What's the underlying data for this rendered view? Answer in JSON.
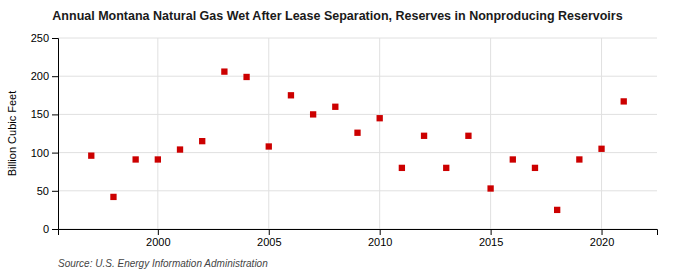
{
  "chart_data": {
    "type": "scatter",
    "title": "Annual Montana Natural Gas Wet After Lease Separation, Reserves in Nonproducing Reservoirs",
    "ylabel": "Billion Cubic Feet",
    "source": "Source: U.S. Energy Information Administration",
    "x": [
      1997,
      1998,
      1999,
      2000,
      2001,
      2002,
      2003,
      2004,
      2005,
      2006,
      2007,
      2008,
      2009,
      2010,
      2011,
      2012,
      2013,
      2014,
      2015,
      2016,
      2017,
      2018,
      2019,
      2020,
      2021
    ],
    "values": [
      96,
      42,
      91,
      91,
      104,
      115,
      206,
      199,
      108,
      175,
      150,
      160,
      126,
      145,
      80,
      122,
      80,
      122,
      53,
      91,
      80,
      25,
      91,
      105,
      167
    ],
    "color": "#cc0000",
    "marker": "square",
    "xlim": [
      1995.5,
      2022.5
    ],
    "ylim": [
      0,
      250
    ],
    "xticks": [
      2000,
      2005,
      2010,
      2015,
      2020
    ],
    "yticks": [
      0,
      50,
      100,
      150,
      200,
      250
    ],
    "grid": true
  }
}
